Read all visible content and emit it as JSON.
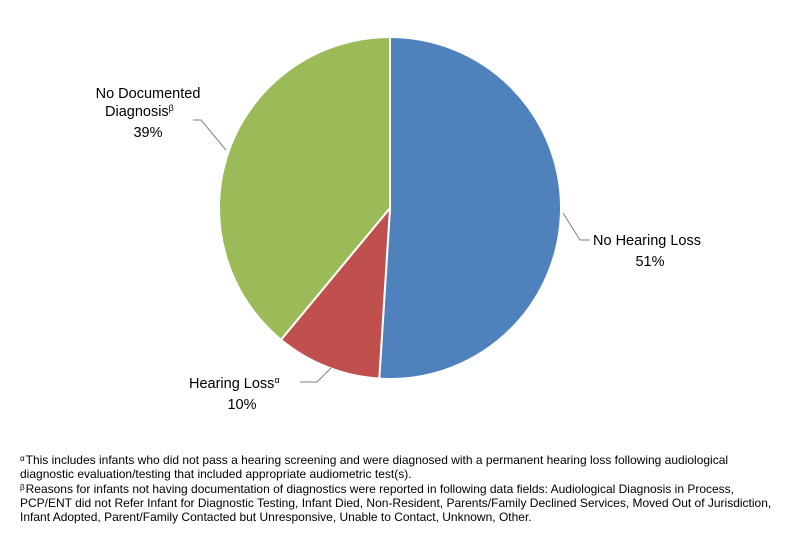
{
  "chart_data": {
    "type": "pie",
    "slices": [
      {
        "name": "No Hearing Loss",
        "value": 51,
        "label_value": "51%",
        "color": "#4F81BD"
      },
      {
        "name": "Hearing Loss",
        "superscript": "α",
        "value": 10,
        "label_value": "10%",
        "color": "#C0504D"
      },
      {
        "name": "No Documented Diagnosis",
        "name_line1": "No Documented",
        "name_line2": "Diagnosis",
        "superscript": "β",
        "value": 39,
        "label_value": "39%",
        "color": "#9BBB59"
      }
    ]
  },
  "footnotes": [
    {
      "mark": "α",
      "text": "This includes infants who did not pass a hearing screening and were diagnosed with a permanent hearing loss following audiological diagnostic evaluation/testing that included appropriate audiometric test(s)."
    },
    {
      "mark": "β",
      "text": "Reasons for infants not having documentation of diagnostics were reported in following data fields: Audiological Diagnosis in Process, PCP/ENT did not Refer Infant for Diagnostic Testing, Infant Died, Non-Resident, Parents/Family Declined Services, Moved Out of Jurisdiction, Infant Adopted, Parent/Family Contacted but Unresponsive, Unable to Contact, Unknown, Other."
    }
  ]
}
